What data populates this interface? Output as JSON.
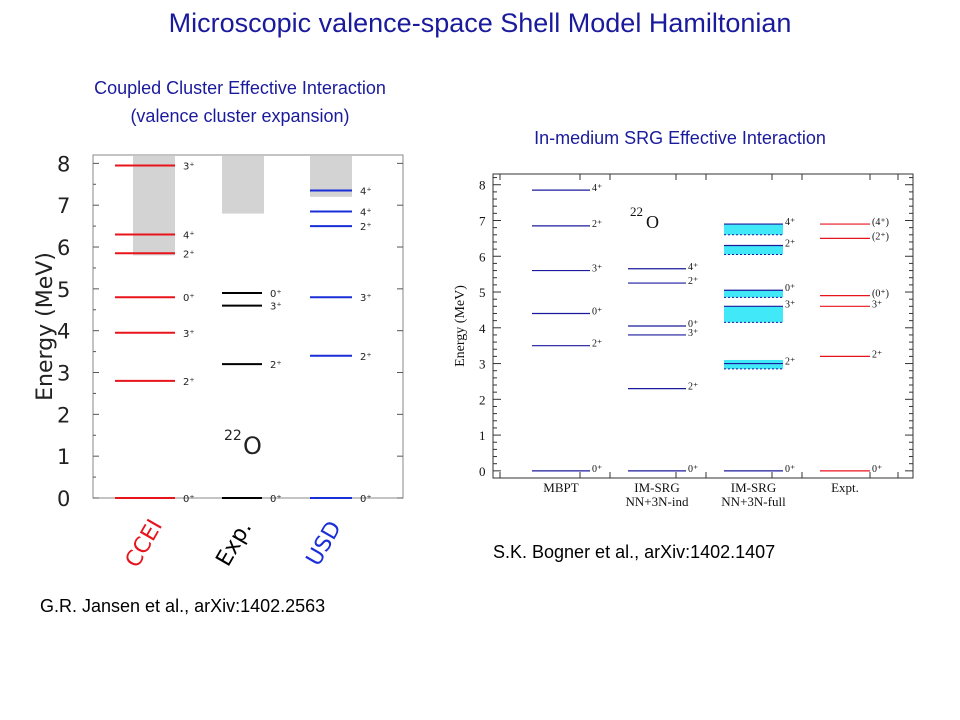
{
  "slide": {
    "title": "Microscopic valence-space Shell Model Hamiltonian",
    "left_subtitle_line1": "Coupled Cluster Effective Interaction",
    "left_subtitle_line2": "(valence cluster expansion)",
    "right_subtitle": "In-medium SRG Effective Interaction",
    "citation_left": "G.R. Jansen et al., arXiv:1402.2563",
    "citation_right": "S.K. Bogner et al., arXiv:1402.1407"
  },
  "colors": {
    "title": "#1a1a9c",
    "red": "#e8141c",
    "black": "#000000",
    "blue": "#1a2ed8",
    "navy": "#1a1a9c",
    "gray_band": "#d3d3d3",
    "cyan_band": "#40e8f8"
  },
  "chart_data": [
    {
      "type": "level-scheme",
      "ylabel": "Energy (MeV)",
      "ylim": [
        0,
        8.2
      ],
      "yticks": [
        "0",
        "1",
        "2",
        "3",
        "4",
        "5",
        "6",
        "7",
        "8"
      ],
      "nucleus_label": {
        "mass": "22",
        "symbol": "O"
      },
      "columns": [
        {
          "name": "CCEI",
          "color": "red",
          "band": [
            5.8,
            8.2
          ],
          "levels": [
            {
              "energy": 0.0,
              "label": "0⁺"
            },
            {
              "energy": 2.8,
              "label": "2⁺"
            },
            {
              "energy": 3.95,
              "label": "3⁺"
            },
            {
              "energy": 4.8,
              "label": "0⁺"
            },
            {
              "energy": 5.85,
              "label": "2⁺"
            },
            {
              "energy": 6.3,
              "label": "4⁺"
            },
            {
              "energy": 7.95,
              "label": "3⁺"
            }
          ]
        },
        {
          "name": "Exp.",
          "color": "black",
          "band": [
            6.8,
            8.2
          ],
          "levels": [
            {
              "energy": 0.0,
              "label": "0⁺"
            },
            {
              "energy": 3.2,
              "label": "2⁺"
            },
            {
              "energy": 4.6,
              "label": "3⁺"
            },
            {
              "energy": 4.9,
              "label": "0⁺"
            }
          ]
        },
        {
          "name": "USD",
          "color": "blue",
          "band": [
            7.2,
            8.2
          ],
          "levels": [
            {
              "energy": 0.0,
              "label": "0⁺"
            },
            {
              "energy": 3.4,
              "label": "2⁺"
            },
            {
              "energy": 4.8,
              "label": "3⁺"
            },
            {
              "energy": 6.5,
              "label": "2⁺"
            },
            {
              "energy": 6.85,
              "label": "4⁺"
            },
            {
              "energy": 7.35,
              "label": "4⁺"
            }
          ]
        }
      ]
    },
    {
      "type": "level-scheme",
      "ylabel": "Energy (MeV)",
      "ylim": [
        -0.2,
        8.3
      ],
      "yticks": [
        "0",
        "1",
        "2",
        "3",
        "4",
        "5",
        "6",
        "7",
        "8"
      ],
      "nucleus_label": {
        "mass": "22",
        "symbol": "O"
      },
      "columns": [
        {
          "name": "MBPT",
          "name2": "",
          "color": "navy",
          "levels": [
            {
              "energy": 0.0,
              "label": "0⁺"
            },
            {
              "energy": 3.5,
              "label": "2⁺"
            },
            {
              "energy": 4.4,
              "label": "0⁺"
            },
            {
              "energy": 5.6,
              "label": "3⁺"
            },
            {
              "energy": 6.85,
              "label": "2⁺"
            },
            {
              "energy": 7.85,
              "label": "4⁺"
            }
          ]
        },
        {
          "name": "IM-SRG",
          "name2": "NN+3N-ind",
          "color": "navy",
          "levels": [
            {
              "energy": 0.0,
              "label": "0⁺"
            },
            {
              "energy": 2.3,
              "label": "2⁺"
            },
            {
              "energy": 3.8,
              "label": "3⁺"
            },
            {
              "energy": 4.05,
              "label": "0⁺"
            },
            {
              "energy": 5.25,
              "label": "2⁺"
            },
            {
              "energy": 5.65,
              "label": "4⁺"
            }
          ]
        },
        {
          "name": "IM-SRG",
          "name2": "NN+3N-full",
          "color": "navy",
          "levels": [
            {
              "energy": 0.0,
              "label": "0⁺"
            },
            {
              "energy": 3.0,
              "label": "2⁺",
              "band": [
                2.85,
                3.1
              ]
            },
            {
              "energy": 4.6,
              "label": "3⁺",
              "band": [
                4.15,
                4.6
              ]
            },
            {
              "energy": 5.05,
              "label": "0⁺",
              "band": [
                4.85,
                5.05
              ]
            },
            {
              "energy": 6.3,
              "label": "2⁺",
              "band": [
                6.05,
                6.3
              ]
            },
            {
              "energy": 6.9,
              "label": "4⁺",
              "band": [
                6.6,
                6.9
              ]
            }
          ]
        },
        {
          "name": "Expt.",
          "name2": "",
          "color": "red",
          "levels": [
            {
              "energy": 0.0,
              "label": "0⁺"
            },
            {
              "energy": 3.2,
              "label": "2⁺"
            },
            {
              "energy": 4.6,
              "label": "3⁺"
            },
            {
              "energy": 4.9,
              "label": "(0⁺)"
            },
            {
              "energy": 6.5,
              "label": "(2⁺)"
            },
            {
              "energy": 6.9,
              "label": "(4⁺)"
            }
          ]
        }
      ]
    }
  ]
}
